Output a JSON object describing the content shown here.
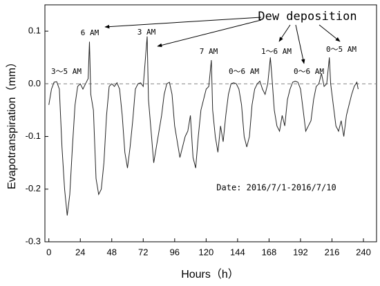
{
  "chart_data": {
    "type": "line",
    "x_label": "Hours（h）",
    "y_label": "Evapotranspiration（mm）",
    "xlim": [
      -3,
      250
    ],
    "ylim": [
      -0.3,
      0.15
    ],
    "xticks": [
      0,
      24,
      48,
      72,
      96,
      120,
      144,
      168,
      192,
      216,
      240
    ],
    "yticks": [
      0.1,
      {
        "value": 0,
        "label": "0.0"
      },
      -0.1,
      -0.2,
      -0.3
    ],
    "reference_line": 0,
    "color": "#222222",
    "annotations": [
      "Dew deposition",
      "3～5 AM",
      "6 AM",
      "3 AM",
      "7 AM",
      "0～6 AM",
      "1～6 AM",
      "0～6 AM",
      "0～5 AM",
      "Date: 2016/7/1-2016/7/10"
    ],
    "x": [
      0,
      2,
      4,
      6,
      8,
      10,
      12,
      14,
      16,
      18,
      20,
      22,
      24,
      26,
      28,
      30,
      31,
      32,
      34,
      36,
      38,
      40,
      42,
      44,
      46,
      48,
      50,
      52,
      54,
      56,
      58,
      60,
      62,
      64,
      66,
      68,
      70,
      72,
      75,
      76,
      78,
      80,
      82,
      84,
      86,
      88,
      90,
      92,
      94,
      96,
      98,
      100,
      102,
      104,
      106,
      108,
      110,
      112,
      114,
      116,
      118,
      120,
      122,
      124,
      125,
      127,
      129,
      131,
      133,
      135,
      137,
      139,
      141,
      143,
      145,
      147,
      149,
      151,
      153,
      155,
      157,
      159,
      161,
      163,
      165,
      167,
      169,
      170,
      172,
      174,
      176,
      178,
      180,
      182,
      184,
      186,
      188,
      190,
      192,
      194,
      196,
      198,
      200,
      202,
      204,
      206,
      208,
      210,
      212,
      214,
      215,
      217,
      219,
      221,
      223,
      225,
      227,
      229,
      231,
      233,
      235,
      236
    ],
    "values": [
      -0.04,
      -0.01,
      0.003,
      0.004,
      -0.01,
      -0.12,
      -0.2,
      -0.25,
      -0.21,
      -0.12,
      -0.04,
      -0.005,
      0.0,
      -0.01,
      0.0,
      0.01,
      0.08,
      -0.02,
      -0.05,
      -0.18,
      -0.21,
      -0.2,
      -0.15,
      -0.06,
      -0.005,
      0.0,
      -0.005,
      0.002,
      -0.01,
      -0.06,
      -0.13,
      -0.16,
      -0.12,
      -0.07,
      -0.01,
      0.0,
      0.002,
      -0.005,
      0.09,
      -0.03,
      -0.09,
      -0.15,
      -0.12,
      -0.09,
      -0.06,
      -0.02,
      0.0,
      0.003,
      -0.02,
      -0.08,
      -0.11,
      -0.14,
      -0.12,
      -0.1,
      -0.09,
      -0.06,
      -0.14,
      -0.16,
      -0.1,
      -0.05,
      -0.03,
      -0.01,
      -0.005,
      0.045,
      -0.05,
      -0.1,
      -0.13,
      -0.08,
      -0.11,
      -0.06,
      -0.02,
      0.0,
      0.002,
      0.0,
      -0.01,
      -0.04,
      -0.1,
      -0.12,
      -0.1,
      -0.04,
      -0.01,
      0.0,
      0.005,
      -0.01,
      -0.02,
      0.0,
      0.05,
      0.02,
      -0.05,
      -0.08,
      -0.09,
      -0.06,
      -0.08,
      -0.03,
      -0.01,
      0.003,
      0.005,
      0.003,
      -0.01,
      -0.05,
      -0.09,
      -0.08,
      -0.07,
      -0.03,
      -0.005,
      0.0,
      0.02,
      -0.005,
      0.0,
      0.05,
      0.0,
      -0.04,
      -0.08,
      -0.09,
      -0.07,
      -0.1,
      -0.06,
      -0.04,
      -0.02,
      -0.005,
      0.003,
      -0.01
    ]
  }
}
